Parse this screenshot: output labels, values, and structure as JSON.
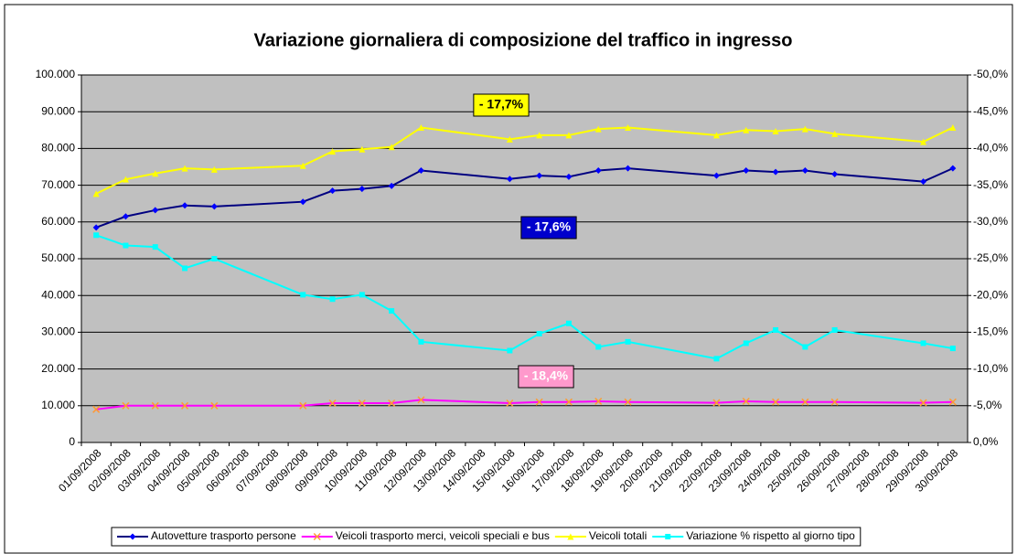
{
  "chart_data": {
    "type": "line",
    "title": "Variazione giornaliera di composizione del traffico in ingresso",
    "xticks": [
      "01/09/2008",
      "02/09/2008",
      "03/09/2008",
      "04/09/2008",
      "05/09/2008",
      "06/09/2008",
      "07/09/2008",
      "08/09/2008",
      "09/09/2008",
      "10/09/2008",
      "11/09/2008",
      "12/09/2008",
      "13/09/2008",
      "14/09/2008",
      "15/09/2008",
      "16/09/2008",
      "17/09/2008",
      "18/09/2008",
      "19/09/2008",
      "20/09/2008",
      "21/09/2008",
      "22/09/2008",
      "23/09/2008",
      "24/09/2008",
      "25/09/2008",
      "26/09/2008",
      "27/09/2008",
      "28/09/2008",
      "29/09/2008",
      "30/09/2008"
    ],
    "x": [
      "01/09/2008",
      "02/09/2008",
      "03/09/2008",
      "04/09/2008",
      "05/09/2008",
      "08/09/2008",
      "09/09/2008",
      "10/09/2008",
      "11/09/2008",
      "12/09/2008",
      "15/09/2008",
      "16/09/2008",
      "17/09/2008",
      "18/09/2008",
      "19/09/2008",
      "22/09/2008",
      "23/09/2008",
      "24/09/2008",
      "25/09/2008",
      "26/09/2008",
      "29/09/2008",
      "30/09/2008"
    ],
    "ylim": [
      0,
      100000
    ],
    "yticks": [
      {
        "value": 0,
        "label": "0"
      },
      {
        "value": 10000,
        "label": "10.000"
      },
      {
        "value": 20000,
        "label": "20.000"
      },
      {
        "value": 30000,
        "label": "30.000"
      },
      {
        "value": 40000,
        "label": "40.000"
      },
      {
        "value": 50000,
        "label": "50.000"
      },
      {
        "value": 60000,
        "label": "60.000"
      },
      {
        "value": 70000,
        "label": "70.000"
      },
      {
        "value": 80000,
        "label": "80.000"
      },
      {
        "value": 90000,
        "label": "90.000"
      },
      {
        "value": 100000,
        "label": "100.000"
      }
    ],
    "y2lim": [
      0,
      -50
    ],
    "y2ticks": [
      {
        "value": 0,
        "label": "0,0%"
      },
      {
        "value": -5,
        "label": "-5,0%"
      },
      {
        "value": -10,
        "label": "-10,0%"
      },
      {
        "value": -15,
        "label": "-15,0%"
      },
      {
        "value": -20,
        "label": "-20,0%"
      },
      {
        "value": -25,
        "label": "-25,0%"
      },
      {
        "value": -30,
        "label": "-30,0%"
      },
      {
        "value": -35,
        "label": "-35,0%"
      },
      {
        "value": -40,
        "label": "-40,0%"
      },
      {
        "value": -45,
        "label": "-45,0%"
      },
      {
        "value": -50,
        "label": "-50,0%"
      }
    ],
    "grid": true,
    "legend": "bottom",
    "series": [
      {
        "name": "Autovetture trasporto persone",
        "color": "#000080",
        "marker": "diamond",
        "marker_color": "#0000ff",
        "values": [
          58500,
          61500,
          63200,
          64500,
          64200,
          65500,
          68500,
          69000,
          69800,
          74000,
          71700,
          72600,
          72300,
          74000,
          74600,
          72600,
          74000,
          73600,
          74000,
          73000,
          71000,
          74600
        ]
      },
      {
        "name": "Veicoli trasporto merci, veicoli speciali e bus",
        "color": "#ff00ff",
        "marker": "cross",
        "marker_color": "#ff9933",
        "values": [
          9000,
          10000,
          10000,
          10000,
          10000,
          10000,
          10700,
          10700,
          10700,
          11600,
          10700,
          11000,
          11000,
          11200,
          11000,
          10800,
          11200,
          11000,
          11000,
          11000,
          10800,
          11000
        ]
      },
      {
        "name": "Veicoli totali",
        "color": "#ffff00",
        "marker": "triangle",
        "marker_color": "#ffff00",
        "values": [
          67700,
          71600,
          73200,
          74600,
          74300,
          75300,
          79200,
          79800,
          80400,
          85700,
          82500,
          83600,
          83600,
          85300,
          85700,
          83600,
          85000,
          84700,
          85300,
          84000,
          81800,
          85700
        ]
      },
      {
        "name": "Variazione % rispetto al giorno tipo",
        "color": "#00ffff",
        "marker": "square",
        "marker_color": "#00ffff",
        "axis": "y2",
        "values": [
          -28.2,
          -26.8,
          -26.6,
          -23.7,
          -25,
          -20.1,
          -19.5,
          -20.1,
          -17.9,
          -13.7,
          -12.5,
          -14.8,
          -16.2,
          -13,
          -13.7,
          -11.4,
          -13.5,
          -15.3,
          -13,
          -15.3,
          -13.5,
          -12.8
        ]
      }
    ],
    "annotations": [
      {
        "text": "- 17,7%",
        "background": "#ffff00",
        "color": "#000000"
      },
      {
        "text": "- 17,6%",
        "background": "#0000cc",
        "color": "#ffffff"
      },
      {
        "text": "- 18,4%",
        "background": "#ff99cc",
        "color": "#ffffff"
      }
    ]
  }
}
